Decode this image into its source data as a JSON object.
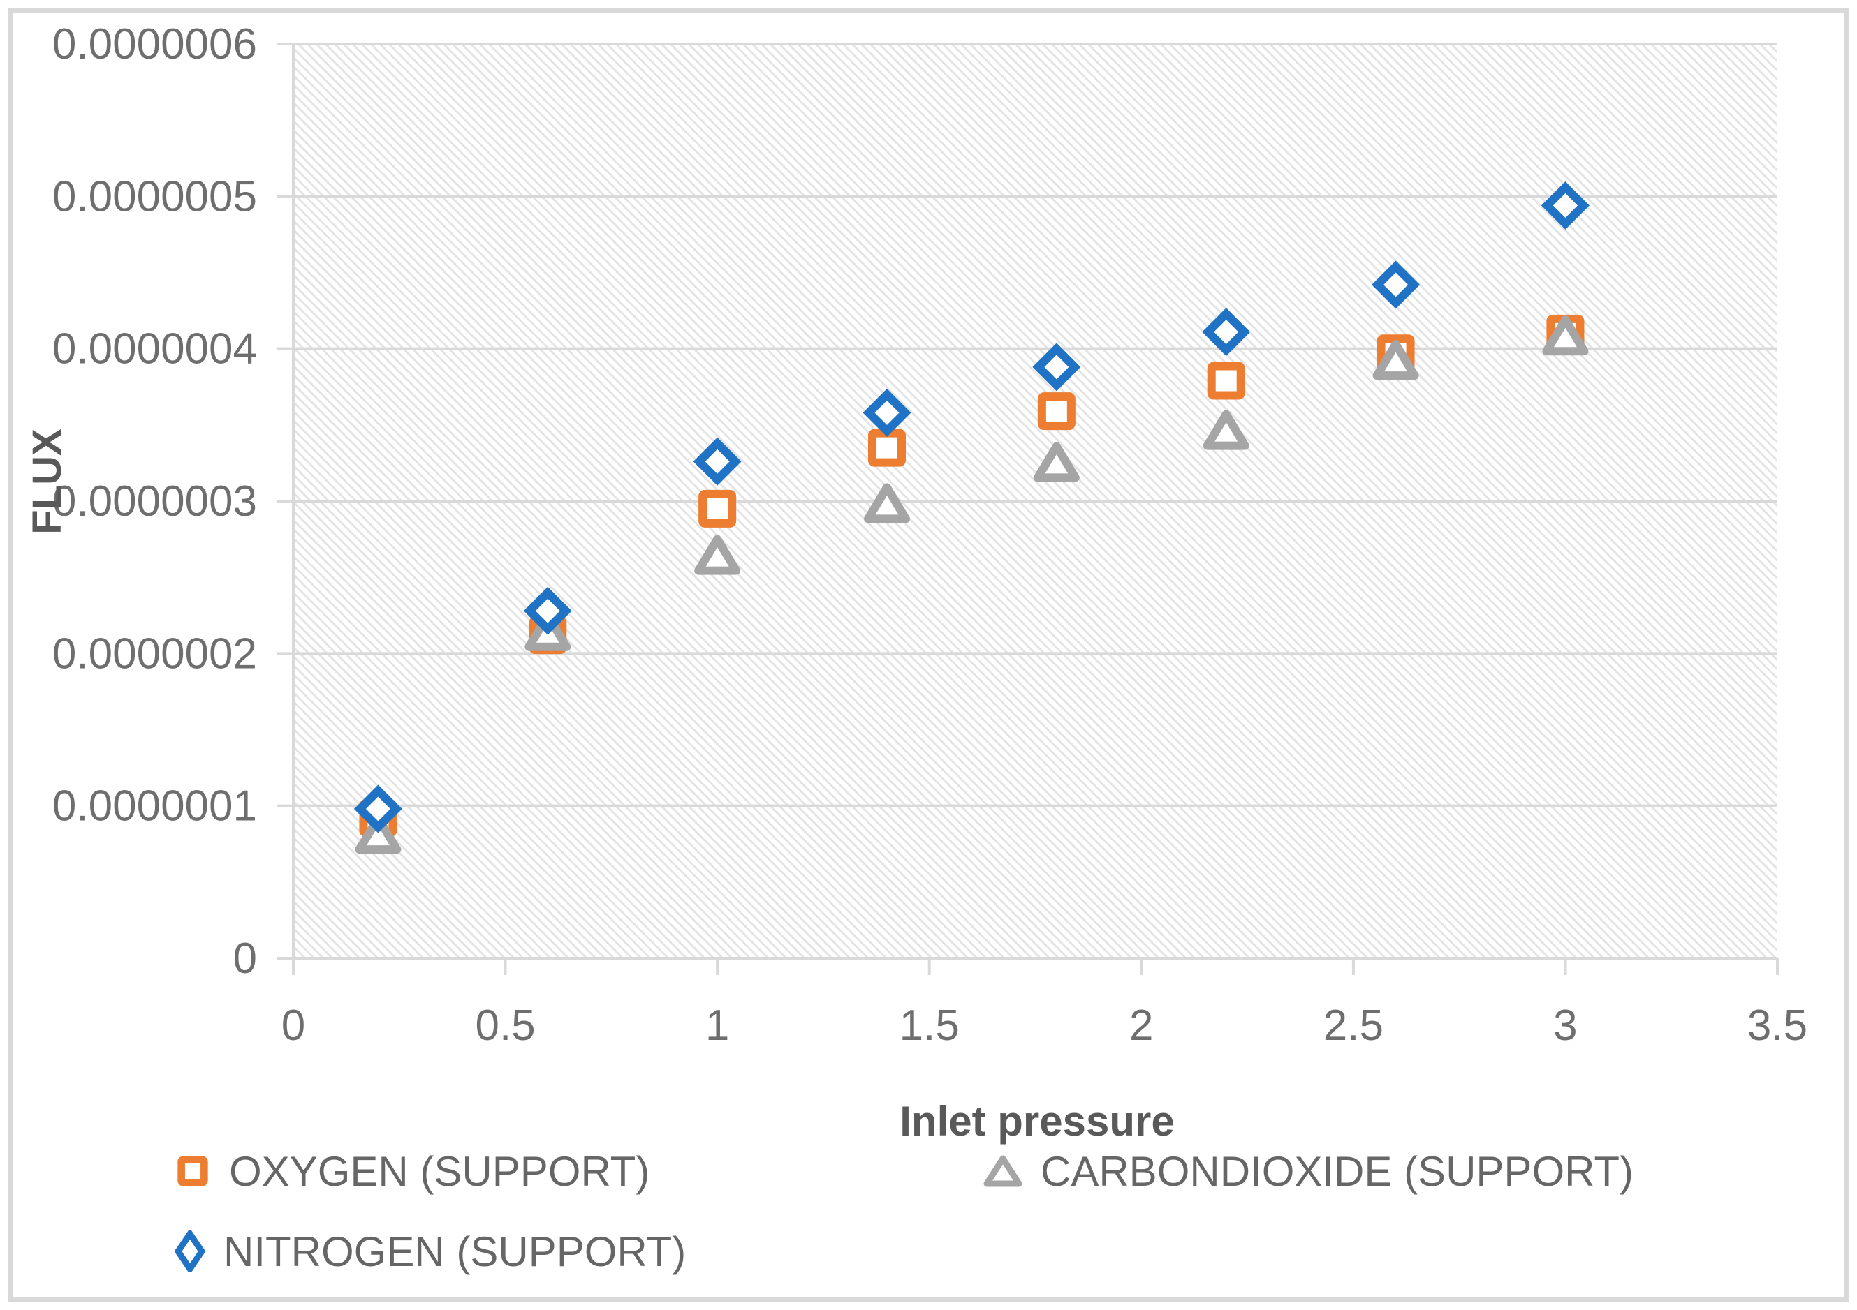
{
  "chart_data": {
    "type": "scatter",
    "title": "",
    "xlabel": "Inlet pressure",
    "ylabel": "FLUX",
    "xlim": [
      0,
      3.5
    ],
    "ylim": [
      0,
      6e-07
    ],
    "x_ticks": [
      0,
      0.5,
      1,
      1.5,
      2,
      2.5,
      3,
      3.5
    ],
    "x_tick_labels": [
      "0",
      "0.5",
      "1",
      "1.5",
      "2",
      "2.5",
      "3",
      "3.5"
    ],
    "y_ticks": [
      0,
      1e-07,
      2e-07,
      3e-07,
      4e-07,
      5e-07,
      6e-07
    ],
    "y_tick_labels": [
      "0",
      "0.0000001",
      "0.0000002",
      "0.0000003",
      "0.0000004",
      "0.0000005",
      "0.0000006"
    ],
    "grid": "horizontal",
    "plot_background": "light-downward-diagonal-hatch",
    "legend_position": "bottom",
    "x": [
      0.2,
      0.6,
      1.0,
      1.4,
      1.8,
      2.2,
      2.6,
      3.0
    ],
    "series": [
      {
        "id": "oxygen",
        "name": "OXYGEN (SUPPORT)",
        "marker": "square",
        "color": "#ED7D31",
        "values": [
          9.2e-08,
          2.12e-07,
          2.95e-07,
          3.35e-07,
          3.59e-07,
          3.79e-07,
          3.97e-07,
          4.1e-07
        ]
      },
      {
        "id": "carbondioxide",
        "name": "CARBONDIOXIDE (SUPPORT)",
        "marker": "triangle",
        "color": "#A5A5A5",
        "values": [
          8.1e-08,
          2.14e-07,
          2.64e-07,
          2.98e-07,
          3.25e-07,
          3.46e-07,
          3.92e-07,
          4.08e-07
        ]
      },
      {
        "id": "nitrogen",
        "name": "NITROGEN (SUPPORT)",
        "marker": "diamond",
        "color": "#1F72C4",
        "values": [
          9.8e-08,
          2.28e-07,
          3.26e-07,
          3.58e-07,
          3.88e-07,
          4.11e-07,
          4.42e-07,
          4.94e-07
        ]
      }
    ]
  },
  "colors": {
    "grid": "#D9D9D9",
    "axis_line": "#D9D9D9",
    "frame_border": "#D9D9D9",
    "tick_text": "#6e6e6e",
    "title_text": "#595959",
    "hatch": "#E4E4E4",
    "marker_fill": "#FFFFFF"
  }
}
